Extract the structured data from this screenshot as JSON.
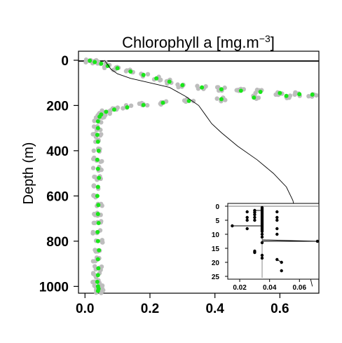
{
  "chart_data": [
    {
      "type": "scatter",
      "title_main": "Chlorophyll a [mg.m",
      "title_sup": "−3",
      "title_end": "]",
      "ylabel": "Depth (m)",
      "xlabel": "",
      "xlim": [
        -0.02,
        0.72
      ],
      "ylim": [
        1030,
        -40
      ],
      "y_reversed": true,
      "grid": false,
      "xticks": [
        0.0,
        0.2,
        0.4,
        0.6
      ],
      "xtick_labels": [
        "0.0",
        "0.2",
        "0.4",
        "0.6"
      ],
      "yticks": [
        0,
        200,
        400,
        600,
        800,
        1000
      ],
      "ytick_labels": [
        "0",
        "200",
        "400",
        "600",
        "800",
        "1000"
      ],
      "colors": {
        "raw": "#bdbdbd",
        "binned": "#19e619",
        "profile": "#000000"
      },
      "series": [
        {
          "kind": "green-points",
          "x": [
            0.015,
            0.03,
            0.05,
            0.07,
            0.1,
            0.14,
            0.18,
            0.22,
            0.26,
            0.3,
            0.36,
            0.42,
            0.48,
            0.54,
            0.6,
            0.66,
            0.7,
            0.62,
            0.52,
            0.42,
            0.32,
            0.24,
            0.18,
            0.13,
            0.09,
            0.065,
            0.05,
            0.045,
            0.04,
            0.04,
            0.038,
            0.04,
            0.042,
            0.038,
            0.04,
            0.043,
            0.04,
            0.038,
            0.041,
            0.04,
            0.042,
            0.039,
            0.04,
            0.043,
            0.04,
            0.041,
            0.04,
            0.038,
            0.04,
            0.042,
            0.04
          ],
          "y": [
            2,
            8,
            15,
            25,
            35,
            50,
            65,
            80,
            95,
            110,
            120,
            128,
            135,
            140,
            145,
            150,
            152,
            158,
            165,
            172,
            180,
            188,
            198,
            208,
            218,
            228,
            240,
            250,
            270,
            300,
            330,
            360,
            400,
            440,
            480,
            520,
            560,
            600,
            640,
            680,
            720,
            760,
            800,
            840,
            880,
            920,
            950,
            980,
            1000,
            1010,
            1020
          ]
        },
        {
          "kind": "black-profile",
          "x": [
            0.06,
            0.065,
            0.07,
            0.08,
            0.1,
            0.14,
            0.2,
            0.26,
            0.31,
            0.35,
            0.37,
            0.39,
            0.42,
            0.47,
            0.53,
            0.58,
            0.62,
            0.64,
            0.65,
            0.66,
            0.67,
            0.68,
            0.69,
            0.7
          ],
          "y": [
            0,
            10,
            20,
            40,
            60,
            80,
            100,
            120,
            160,
            200,
            240,
            280,
            320,
            380,
            440,
            500,
            560,
            620,
            680,
            740,
            800,
            870,
            940,
            1000
          ]
        }
      ]
    },
    {
      "type": "scatter",
      "inset": true,
      "xlim": [
        0.012,
        0.073
      ],
      "ylim": [
        26,
        -1
      ],
      "y_reversed": true,
      "xticks": [
        0.02,
        0.04,
        0.06
      ],
      "xtick_labels": [
        "0.02",
        "0.04",
        "0.06"
      ],
      "yticks": [
        0,
        5,
        10,
        15,
        20,
        25
      ],
      "ytick_labels": [
        "0",
        "5",
        "10",
        "15",
        "20",
        "25"
      ],
      "points_x": [
        0.03,
        0.03,
        0.03,
        0.03,
        0.03,
        0.035,
        0.035,
        0.035,
        0.035,
        0.035,
        0.035,
        0.035,
        0.035,
        0.035,
        0.035,
        0.035,
        0.035,
        0.035,
        0.035,
        0.035,
        0.035,
        0.035,
        0.035,
        0.035,
        0.035,
        0.035,
        0.025,
        0.025,
        0.025,
        0.025,
        0.045,
        0.045,
        0.045,
        0.045,
        0.015,
        0.072,
        0.045,
        0.045,
        0.048,
        0.048,
        0.03,
        0.03,
        0.035,
        0.035
      ],
      "points_y": [
        1.5,
        2.2,
        3,
        4,
        5,
        0.5,
        1,
        1.5,
        2,
        2.5,
        3,
        3.5,
        4,
        4.5,
        5,
        5.5,
        6,
        6.5,
        7,
        7.5,
        8,
        8.5,
        9,
        10,
        11,
        13,
        2,
        4,
        5,
        8,
        2,
        4,
        5,
        8,
        7,
        12.5,
        10,
        19,
        20,
        23,
        16,
        16.5,
        17.5,
        18.5
      ],
      "segments": [
        {
          "x": [
            0.03,
            0.035
          ],
          "y": [
            1.5,
            1.5
          ]
        },
        {
          "x": [
            0.015,
            0.035
          ],
          "y": [
            7,
            7
          ]
        },
        {
          "x": [
            0.035,
            0.072
          ],
          "y": [
            12.5,
            12.5
          ]
        },
        {
          "x": [
            0.035,
            0.072
          ],
          "y": [
            12,
            12.5
          ]
        },
        {
          "x": [
            0.045,
            0.048
          ],
          "y": [
            19,
            20
          ]
        }
      ]
    }
  ]
}
